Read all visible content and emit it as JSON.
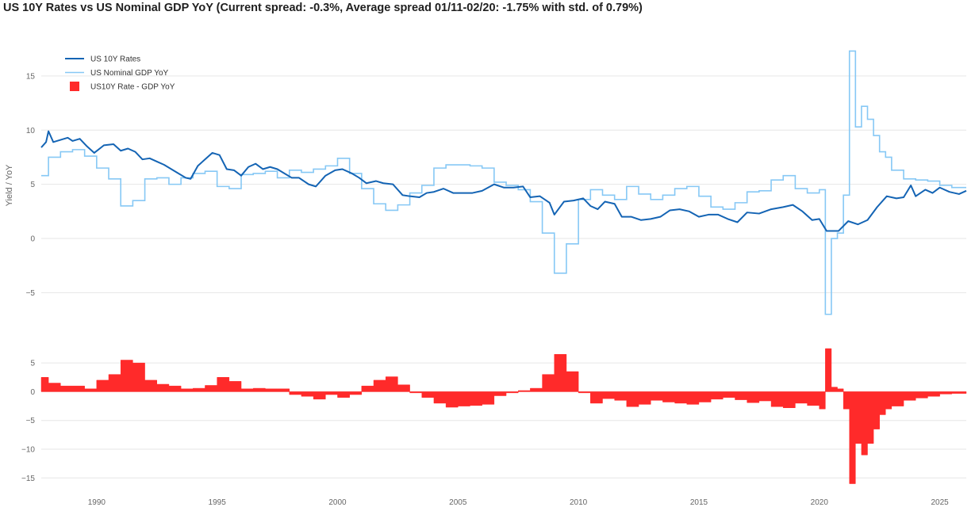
{
  "title": "US 10Y Rates vs US Nominal GDP YoY (Current spread: -0.3%, Average spread 01/11-02/20: -1.75% with std. of 0.79%)",
  "colors": {
    "rates": "#1464b4",
    "gdp": "#86c8f5",
    "spread": "#ff2a2a",
    "grid": "#e6e6e6"
  },
  "chart_data": [
    {
      "type": "line",
      "id": "top",
      "ylabel": "Yield / YoY",
      "ylim": [
        -8.7,
        18.5
      ],
      "yticks": [
        -5,
        0,
        5,
        10,
        15
      ],
      "ytick_labels": [
        "−5",
        "0",
        "5",
        "10",
        "15"
      ],
      "xlim": [
        1987.7,
        2026.1
      ],
      "legend": {
        "placement": "top-left",
        "entries": [
          "US 10Y Rates",
          "US Nominal GDP YoY",
          "US10Y Rate - GDP YoY"
        ]
      },
      "series": [
        {
          "name": "US 10Y Rates",
          "style": "line",
          "x": [
            1987.7,
            1987.9,
            1988.0,
            1988.2,
            1988.5,
            1988.8,
            1989.0,
            1989.3,
            1989.6,
            1989.9,
            1990.3,
            1990.7,
            1991.0,
            1991.3,
            1991.6,
            1991.9,
            1992.2,
            1992.5,
            1992.8,
            1993.1,
            1993.4,
            1993.7,
            1993.9,
            1994.2,
            1994.5,
            1994.8,
            1995.1,
            1995.4,
            1995.7,
            1996.0,
            1996.3,
            1996.6,
            1996.9,
            1997.2,
            1997.5,
            1997.8,
            1998.1,
            1998.4,
            1998.8,
            1999.1,
            1999.5,
            1999.9,
            2000.2,
            2000.6,
            2000.9,
            2001.2,
            2001.6,
            2001.9,
            2002.3,
            2002.7,
            2003.0,
            2003.4,
            2003.7,
            2004.0,
            2004.4,
            2004.8,
            2005.2,
            2005.6,
            2006.0,
            2006.5,
            2006.9,
            2007.3,
            2007.7,
            2008.0,
            2008.4,
            2008.8,
            2009.0,
            2009.4,
            2009.8,
            2010.2,
            2010.5,
            2010.8,
            2011.1,
            2011.5,
            2011.8,
            2012.2,
            2012.6,
            2013.0,
            2013.4,
            2013.8,
            2014.2,
            2014.6,
            2015.0,
            2015.4,
            2015.8,
            2016.2,
            2016.6,
            2017.0,
            2017.5,
            2018.0,
            2018.5,
            2018.9,
            2019.3,
            2019.7,
            2020.0,
            2020.3,
            2020.8,
            2021.2,
            2021.6,
            2022.0,
            2022.4,
            2022.8,
            2023.2,
            2023.5,
            2023.8,
            2024.0,
            2024.4,
            2024.7,
            2025.0,
            2025.4,
            2025.8,
            2026.1
          ],
          "y": [
            8.4,
            8.9,
            9.9,
            8.9,
            9.1,
            9.3,
            9.0,
            9.2,
            8.5,
            7.9,
            8.6,
            8.7,
            8.1,
            8.3,
            8.0,
            7.3,
            7.4,
            7.1,
            6.8,
            6.4,
            6.0,
            5.6,
            5.5,
            6.7,
            7.3,
            7.9,
            7.7,
            6.4,
            6.3,
            5.8,
            6.6,
            6.9,
            6.4,
            6.6,
            6.4,
            6.0,
            5.6,
            5.6,
            5.0,
            4.8,
            5.8,
            6.3,
            6.4,
            6.0,
            5.6,
            5.1,
            5.3,
            5.1,
            5.0,
            4.0,
            3.9,
            3.8,
            4.2,
            4.3,
            4.6,
            4.2,
            4.2,
            4.2,
            4.4,
            5.0,
            4.7,
            4.7,
            4.8,
            3.8,
            3.9,
            3.3,
            2.2,
            3.4,
            3.5,
            3.7,
            3.0,
            2.7,
            3.4,
            3.2,
            2.0,
            2.0,
            1.7,
            1.8,
            2.0,
            2.6,
            2.7,
            2.5,
            2.0,
            2.2,
            2.2,
            1.8,
            1.5,
            2.4,
            2.3,
            2.7,
            2.9,
            3.1,
            2.5,
            1.7,
            1.8,
            0.7,
            0.7,
            1.6,
            1.3,
            1.7,
            2.9,
            3.9,
            3.7,
            3.8,
            4.9,
            3.9,
            4.5,
            4.2,
            4.7,
            4.3,
            4.1,
            4.4
          ]
        },
        {
          "name": "US Nominal GDP YoY",
          "style": "step",
          "x": [
            1987.7,
            1988.0,
            1988.5,
            1989.0,
            1989.5,
            1990.0,
            1990.5,
            1991.0,
            1991.5,
            1992.0,
            1992.5,
            1993.0,
            1993.5,
            1994.0,
            1994.5,
            1995.0,
            1995.5,
            1996.0,
            1996.5,
            1997.0,
            1997.5,
            1998.0,
            1998.5,
            1999.0,
            1999.5,
            2000.0,
            2000.5,
            2001.0,
            2001.5,
            2002.0,
            2002.5,
            2003.0,
            2003.5,
            2004.0,
            2004.5,
            2005.0,
            2005.5,
            2006.0,
            2006.5,
            2007.0,
            2007.5,
            2008.0,
            2008.5,
            2009.0,
            2009.5,
            2010.0,
            2010.5,
            2011.0,
            2011.5,
            2012.0,
            2012.5,
            2013.0,
            2013.5,
            2014.0,
            2014.5,
            2015.0,
            2015.5,
            2016.0,
            2016.5,
            2017.0,
            2017.5,
            2018.0,
            2018.5,
            2019.0,
            2019.5,
            2020.0,
            2020.25,
            2020.5,
            2020.75,
            2021.0,
            2021.25,
            2021.5,
            2021.75,
            2022.0,
            2022.25,
            2022.5,
            2022.75,
            2023.0,
            2023.5,
            2024.0,
            2024.5,
            2025.0,
            2025.5
          ],
          "y": [
            5.8,
            7.5,
            8.0,
            8.2,
            7.6,
            6.5,
            5.5,
            3.0,
            3.5,
            5.5,
            5.6,
            5.0,
            5.6,
            6.0,
            6.2,
            4.8,
            4.6,
            5.9,
            6.0,
            6.2,
            5.6,
            6.3,
            6.1,
            6.4,
            6.7,
            7.4,
            6.0,
            4.6,
            3.2,
            2.6,
            3.1,
            4.2,
            4.9,
            6.5,
            6.8,
            6.8,
            6.7,
            6.5,
            5.2,
            4.9,
            4.5,
            3.4,
            0.5,
            -3.2,
            -0.5,
            3.6,
            4.5,
            4.0,
            3.6,
            4.8,
            4.1,
            3.6,
            4.0,
            4.6,
            4.8,
            3.9,
            2.9,
            2.7,
            3.3,
            4.3,
            4.4,
            5.4,
            5.8,
            4.6,
            4.2,
            4.5,
            -7.0,
            0.0,
            0.5,
            4.0,
            17.3,
            10.3,
            12.2,
            11.0,
            9.5,
            8.0,
            7.5,
            6.3,
            5.5,
            5.4,
            5.3,
            4.9,
            4.7
          ]
        },
        {
          "name": "US10Y Rate - GDP YoY",
          "style": "legend-only",
          "x": [],
          "y": []
        }
      ]
    },
    {
      "type": "area",
      "id": "bottom",
      "ylim": [
        -16.2,
        7.5
      ],
      "yticks": [
        -15,
        -10,
        -5,
        0,
        5
      ],
      "ytick_labels": [
        "−15",
        "−10",
        "−5",
        "0",
        "5"
      ],
      "xlim": [
        1987.7,
        2026.1
      ],
      "xticks": [
        1990,
        1995,
        2000,
        2005,
        2010,
        2015,
        2020,
        2025
      ],
      "xtick_labels": [
        "1990",
        "1995",
        "2000",
        "2005",
        "2010",
        "2015",
        "2020",
        "2025"
      ],
      "series": [
        {
          "name": "US10Y Rate - GDP YoY",
          "x": [
            1987.7,
            1988.0,
            1988.5,
            1989.0,
            1989.5,
            1990.0,
            1990.5,
            1991.0,
            1991.5,
            1992.0,
            1992.5,
            1993.0,
            1993.5,
            1994.0,
            1994.5,
            1995.0,
            1995.5,
            1996.0,
            1996.5,
            1997.0,
            1997.5,
            1998.0,
            1998.5,
            1999.0,
            1999.5,
            2000.0,
            2000.5,
            2001.0,
            2001.5,
            2002.0,
            2002.5,
            2003.0,
            2003.5,
            2004.0,
            2004.5,
            2005.0,
            2005.5,
            2006.0,
            2006.5,
            2007.0,
            2007.5,
            2008.0,
            2008.5,
            2009.0,
            2009.5,
            2010.0,
            2010.5,
            2011.0,
            2011.5,
            2012.0,
            2012.5,
            2013.0,
            2013.5,
            2014.0,
            2014.5,
            2015.0,
            2015.5,
            2016.0,
            2016.5,
            2017.0,
            2017.5,
            2018.0,
            2018.5,
            2019.0,
            2019.5,
            2020.0,
            2020.25,
            2020.5,
            2020.75,
            2021.0,
            2021.25,
            2021.5,
            2021.75,
            2022.0,
            2022.25,
            2022.5,
            2022.75,
            2023.0,
            2023.5,
            2024.0,
            2024.5,
            2025.0,
            2025.5,
            2026.1
          ],
          "y": [
            2.5,
            1.5,
            1.0,
            1.0,
            0.5,
            2.0,
            3.0,
            5.5,
            5.0,
            2.0,
            1.3,
            1.0,
            0.5,
            0.6,
            1.1,
            2.5,
            1.8,
            0.5,
            0.6,
            0.5,
            0.5,
            -0.5,
            -0.8,
            -1.3,
            -0.5,
            -1.0,
            -0.5,
            1.0,
            2.0,
            2.6,
            1.2,
            -0.2,
            -1.0,
            -2.0,
            -2.7,
            -2.5,
            -2.4,
            -2.2,
            -0.7,
            -0.2,
            0.2,
            0.6,
            3.0,
            6.5,
            3.5,
            -0.2,
            -2.0,
            -1.2,
            -1.5,
            -2.6,
            -2.2,
            -1.5,
            -1.8,
            -2.0,
            -2.2,
            -1.8,
            -1.3,
            -1.0,
            -1.4,
            -1.9,
            -1.6,
            -2.6,
            -2.8,
            -2.0,
            -2.4,
            -3.0,
            7.5,
            0.8,
            0.5,
            -3.0,
            -16.0,
            -9.0,
            -11.0,
            -9.0,
            -6.5,
            -4.0,
            -3.0,
            -2.5,
            -1.5,
            -1.1,
            -0.8,
            -0.4,
            -0.3,
            -0.3
          ]
        }
      ]
    }
  ]
}
